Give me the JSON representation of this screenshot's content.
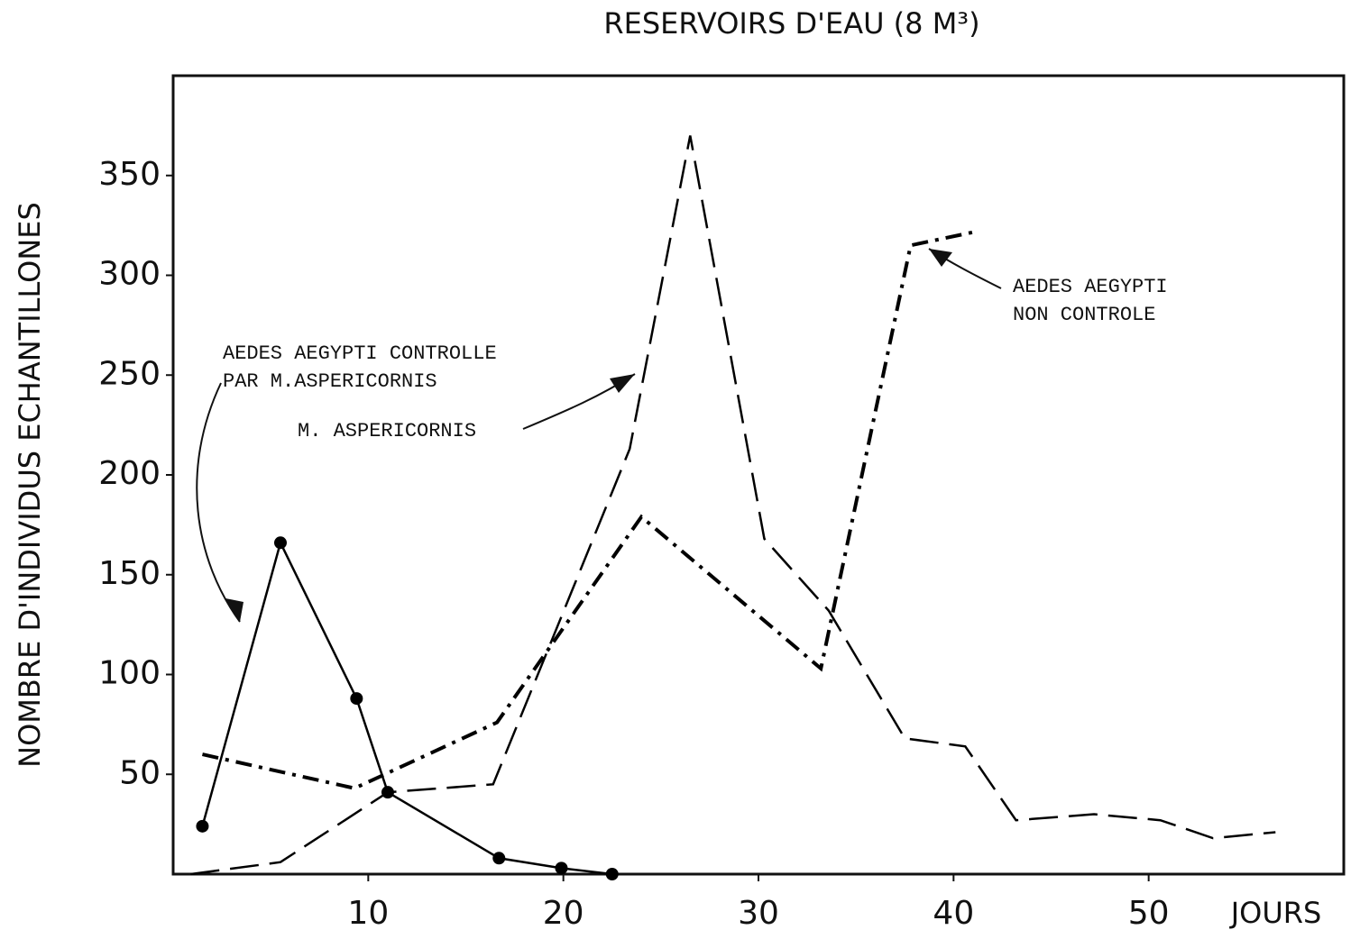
{
  "chart_data": {
    "type": "line",
    "title": "RESERVOIRS D'EAU  (8 M³)",
    "y_label": "NOMBRE D'INDIVIDUS ECHANTILLONES",
    "x_label": "JOURS",
    "xlim": [
      0,
      60
    ],
    "xticks": [
      10,
      20,
      30,
      40,
      50
    ],
    "ylim": [
      0,
      400
    ],
    "yticks": [
      50,
      100,
      150,
      200,
      250,
      300,
      350
    ],
    "series": [
      {
        "color": "#000000",
        "style": "solid",
        "markers": true,
        "x": [
          1.5,
          5.5,
          9.4,
          11.0,
          16.7,
          19.9,
          22.5
        ],
        "values": [
          24,
          166,
          88,
          41,
          8,
          3,
          0
        ]
      },
      {
        "color": "#000000",
        "style": "dashed",
        "markers": false,
        "x": [
          0.9,
          5.5,
          11.0,
          16.4,
          23.4,
          26.5,
          30.3,
          33.6,
          37.5,
          40.6,
          43.2,
          47.2,
          50.6,
          53.3,
          56.5
        ],
        "values": [
          0,
          6,
          41,
          45,
          213,
          370,
          168,
          132,
          68,
          64,
          27,
          30,
          27,
          18,
          21
        ]
      },
      {
        "color": "#000000",
        "style": "dashdot",
        "markers": false,
        "x": [
          1.5,
          9.3,
          16.6,
          24.0,
          33.2,
          37.8,
          41.2
        ],
        "values": [
          60,
          43,
          76,
          179,
          103,
          315,
          322
        ]
      }
    ],
    "annotations": [
      {
        "lines": [
          "AEDES AEGYPTI CONTROLLE",
          "PAR M.ASPERICORNIS"
        ]
      },
      {
        "lines": [
          "M. ASPERICORNIS"
        ]
      },
      {
        "lines": [
          "AEDES AEGYPTI",
          "NON CONTROLE"
        ]
      }
    ]
  }
}
